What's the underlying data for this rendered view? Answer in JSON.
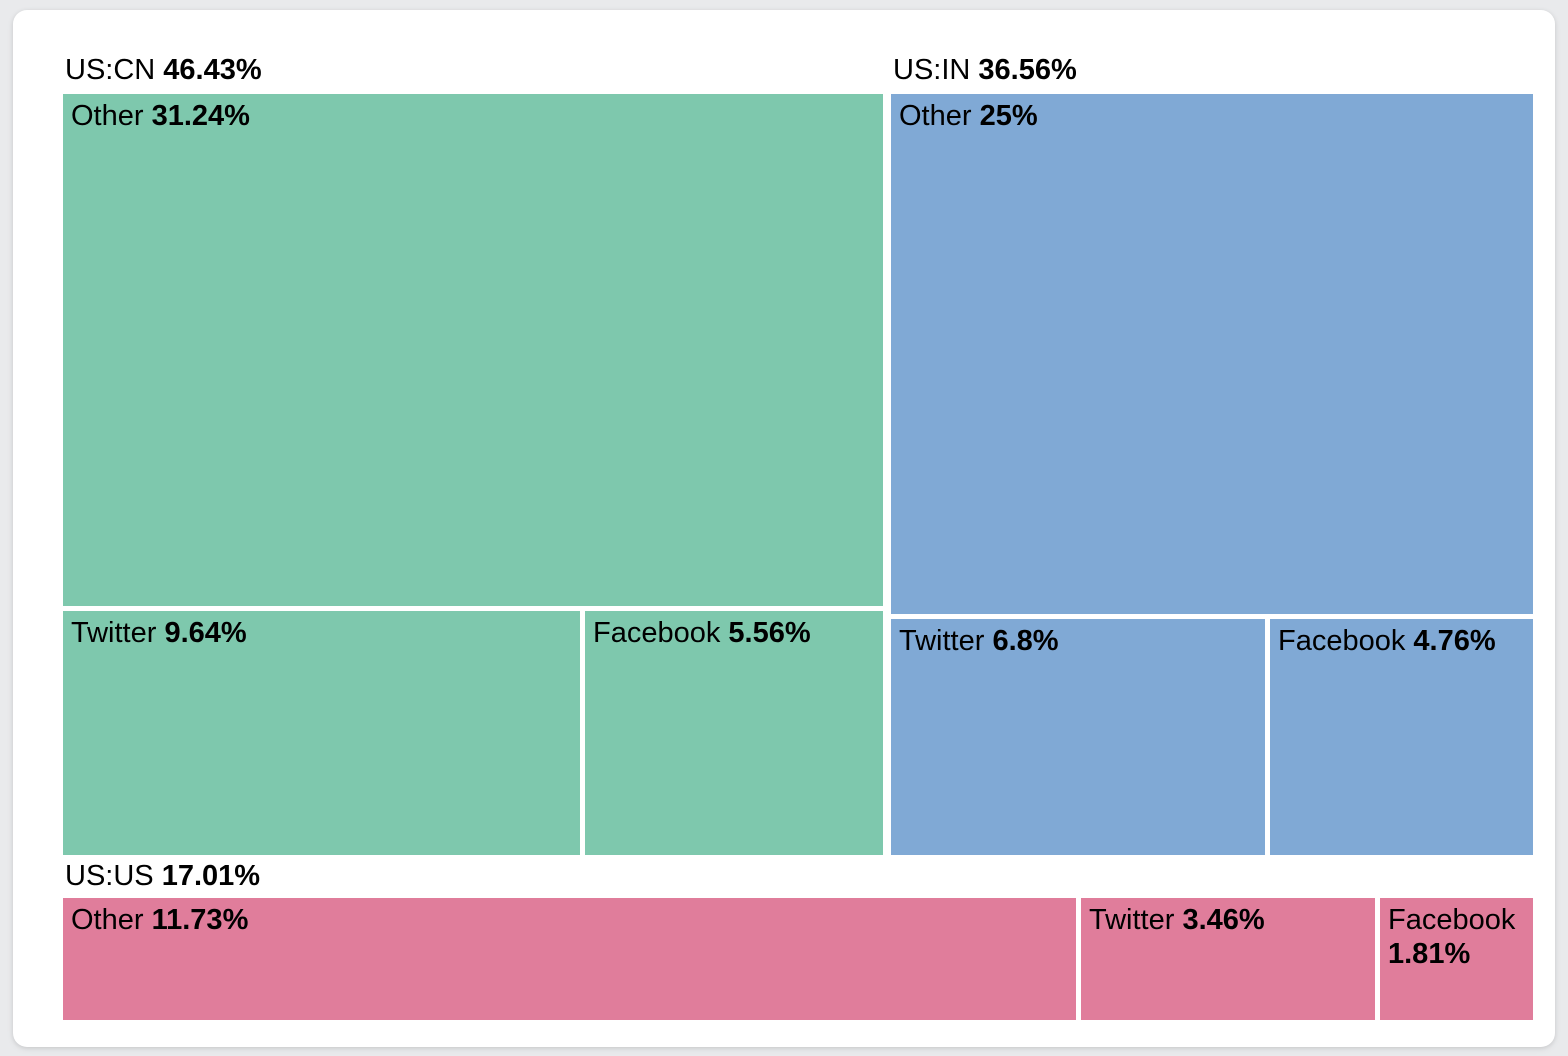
{
  "page": {
    "background_color": "#e9eaec",
    "card_background_color": "#ffffff"
  },
  "chart_data": {
    "type": "treemap",
    "legend": "none",
    "groups": [
      {
        "label": "US:CN",
        "value": 46.43,
        "value_display": "46.43%",
        "color": "#7ec8ad",
        "children": [
          {
            "label": "Other",
            "value": 31.24,
            "value_display": "31.24%"
          },
          {
            "label": "Twitter",
            "value": 9.64,
            "value_display": "9.64%"
          },
          {
            "label": "Facebook",
            "value": 5.56,
            "value_display": "5.56%"
          }
        ]
      },
      {
        "label": "US:IN",
        "value": 36.56,
        "value_display": "36.56%",
        "color": "#80a9d5",
        "children": [
          {
            "label": "Other",
            "value": 25,
            "value_display": "25%"
          },
          {
            "label": "Twitter",
            "value": 6.8,
            "value_display": "6.8%"
          },
          {
            "label": "Facebook",
            "value": 4.76,
            "value_display": "4.76%"
          }
        ]
      },
      {
        "label": "US:US",
        "value": 17.01,
        "value_display": "17.01%",
        "color": "#e07d9b",
        "children": [
          {
            "label": "Other",
            "value": 11.73,
            "value_display": "11.73%"
          },
          {
            "label": "Twitter",
            "value": 3.46,
            "value_display": "3.46%"
          },
          {
            "label": "Facebook",
            "value": 1.81,
            "value_display": "1.81%"
          }
        ]
      }
    ]
  }
}
